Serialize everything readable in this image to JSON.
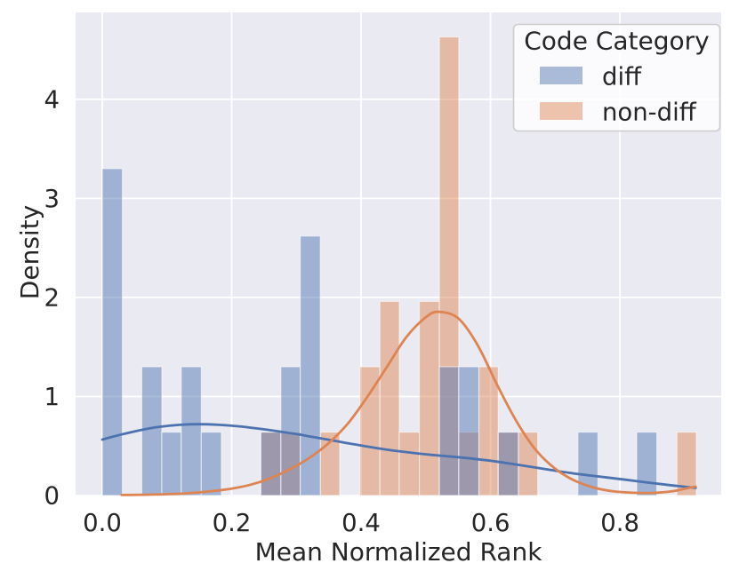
{
  "chart_data": {
    "type": "histogram+kde",
    "title": "",
    "xlabel": "Mean Normalized Rank",
    "ylabel": "Density",
    "xlim": [
      -0.0412,
      0.9565
    ],
    "ylim": [
      0,
      4.877
    ],
    "grid": true,
    "legend_position": "upper right",
    "bin_width": 0.0306,
    "x_ticks": [
      {
        "v": 0.0,
        "label": "0.0"
      },
      {
        "v": 0.2,
        "label": "0.2"
      },
      {
        "v": 0.4,
        "label": "0.4"
      },
      {
        "v": 0.6,
        "label": "0.6"
      },
      {
        "v": 0.8,
        "label": "0.8"
      }
    ],
    "y_ticks": [
      {
        "v": 0,
        "label": "0"
      },
      {
        "v": 1,
        "label": "1"
      },
      {
        "v": 2,
        "label": "2"
      },
      {
        "v": 3,
        "label": "3"
      },
      {
        "v": 4,
        "label": "4"
      }
    ],
    "legend": {
      "title": "Code Category",
      "entries": [
        {
          "label": "diff",
          "color": "#4C72B0"
        },
        {
          "label": "non-diff",
          "color": "#DD8452"
        }
      ]
    },
    "series": [
      {
        "name": "diff",
        "color": "#4C72B0",
        "bars": [
          {
            "x0": 0.0,
            "x1": 0.031,
            "density": 3.3
          },
          {
            "x0": 0.061,
            "x1": 0.092,
            "density": 1.3
          },
          {
            "x0": 0.092,
            "x1": 0.122,
            "density": 0.64
          },
          {
            "x0": 0.122,
            "x1": 0.153,
            "density": 1.3
          },
          {
            "x0": 0.153,
            "x1": 0.184,
            "density": 0.64
          },
          {
            "x0": 0.245,
            "x1": 0.276,
            "density": 0.64
          },
          {
            "x0": 0.276,
            "x1": 0.306,
            "density": 1.3
          },
          {
            "x0": 0.306,
            "x1": 0.337,
            "density": 2.62
          },
          {
            "x0": 0.521,
            "x1": 0.551,
            "density": 1.3
          },
          {
            "x0": 0.551,
            "x1": 0.582,
            "density": 1.3
          },
          {
            "x0": 0.612,
            "x1": 0.643,
            "density": 0.64
          },
          {
            "x0": 0.735,
            "x1": 0.766,
            "density": 0.64
          },
          {
            "x0": 0.826,
            "x1": 0.857,
            "density": 0.64
          }
        ],
        "kde": [
          [
            0.0,
            0.565
          ],
          [
            0.03,
            0.617
          ],
          [
            0.06,
            0.662
          ],
          [
            0.09,
            0.695
          ],
          [
            0.12,
            0.714
          ],
          [
            0.15,
            0.72
          ],
          [
            0.18,
            0.714
          ],
          [
            0.21,
            0.699
          ],
          [
            0.24,
            0.677
          ],
          [
            0.27,
            0.65
          ],
          [
            0.3,
            0.62
          ],
          [
            0.33,
            0.586
          ],
          [
            0.36,
            0.551
          ],
          [
            0.39,
            0.516
          ],
          [
            0.42,
            0.483
          ],
          [
            0.45,
            0.454
          ],
          [
            0.48,
            0.43
          ],
          [
            0.51,
            0.41
          ],
          [
            0.54,
            0.393
          ],
          [
            0.57,
            0.374
          ],
          [
            0.6,
            0.351
          ],
          [
            0.63,
            0.323
          ],
          [
            0.66,
            0.292
          ],
          [
            0.69,
            0.261
          ],
          [
            0.72,
            0.231
          ],
          [
            0.75,
            0.205
          ],
          [
            0.78,
            0.182
          ],
          [
            0.81,
            0.159
          ],
          [
            0.84,
            0.134
          ],
          [
            0.87,
            0.11
          ],
          [
            0.9,
            0.089
          ],
          [
            0.917,
            0.078
          ]
        ]
      },
      {
        "name": "non-diff",
        "color": "#DD8452",
        "bars": [
          {
            "x0": 0.245,
            "x1": 0.276,
            "density": 0.64
          },
          {
            "x0": 0.276,
            "x1": 0.306,
            "density": 0.64
          },
          {
            "x0": 0.337,
            "x1": 0.367,
            "density": 0.64
          },
          {
            "x0": 0.398,
            "x1": 0.429,
            "density": 1.3
          },
          {
            "x0": 0.429,
            "x1": 0.459,
            "density": 1.96
          },
          {
            "x0": 0.459,
            "x1": 0.49,
            "density": 0.64
          },
          {
            "x0": 0.49,
            "x1": 0.521,
            "density": 1.96
          },
          {
            "x0": 0.521,
            "x1": 0.551,
            "density": 4.63
          },
          {
            "x0": 0.551,
            "x1": 0.582,
            "density": 0.64
          },
          {
            "x0": 0.582,
            "x1": 0.612,
            "density": 1.3
          },
          {
            "x0": 0.612,
            "x1": 0.643,
            "density": 0.64
          },
          {
            "x0": 0.643,
            "x1": 0.673,
            "density": 0.64
          },
          {
            "x0": 0.888,
            "x1": 0.918,
            "density": 0.64
          }
        ],
        "kde": [
          [
            0.03,
            0.005
          ],
          [
            0.08,
            0.01
          ],
          [
            0.13,
            0.022
          ],
          [
            0.17,
            0.045
          ],
          [
            0.2,
            0.07
          ],
          [
            0.23,
            0.11
          ],
          [
            0.26,
            0.175
          ],
          [
            0.29,
            0.265
          ],
          [
            0.32,
            0.38
          ],
          [
            0.35,
            0.53
          ],
          [
            0.38,
            0.73
          ],
          [
            0.41,
            1.0
          ],
          [
            0.44,
            1.3
          ],
          [
            0.47,
            1.6
          ],
          [
            0.5,
            1.8
          ],
          [
            0.52,
            1.855
          ],
          [
            0.55,
            1.79
          ],
          [
            0.58,
            1.52
          ],
          [
            0.61,
            1.12
          ],
          [
            0.64,
            0.75
          ],
          [
            0.67,
            0.46
          ],
          [
            0.7,
            0.27
          ],
          [
            0.73,
            0.15
          ],
          [
            0.76,
            0.08
          ],
          [
            0.79,
            0.042
          ],
          [
            0.82,
            0.028
          ],
          [
            0.85,
            0.026
          ],
          [
            0.88,
            0.042
          ],
          [
            0.905,
            0.075
          ],
          [
            0.917,
            0.09
          ]
        ]
      }
    ],
    "style": {
      "figure_bg": "#FFFFFF",
      "plot_bg": "#EAEAF2",
      "grid_color": "#FFFFFF",
      "text_color": "#262626",
      "bar_alpha": 0.47,
      "bar_edge": "rgba(255,255,255,0.55)",
      "legend_bg": "rgba(255,255,255,0.8)",
      "legend_border": "#CCCCCC"
    }
  }
}
